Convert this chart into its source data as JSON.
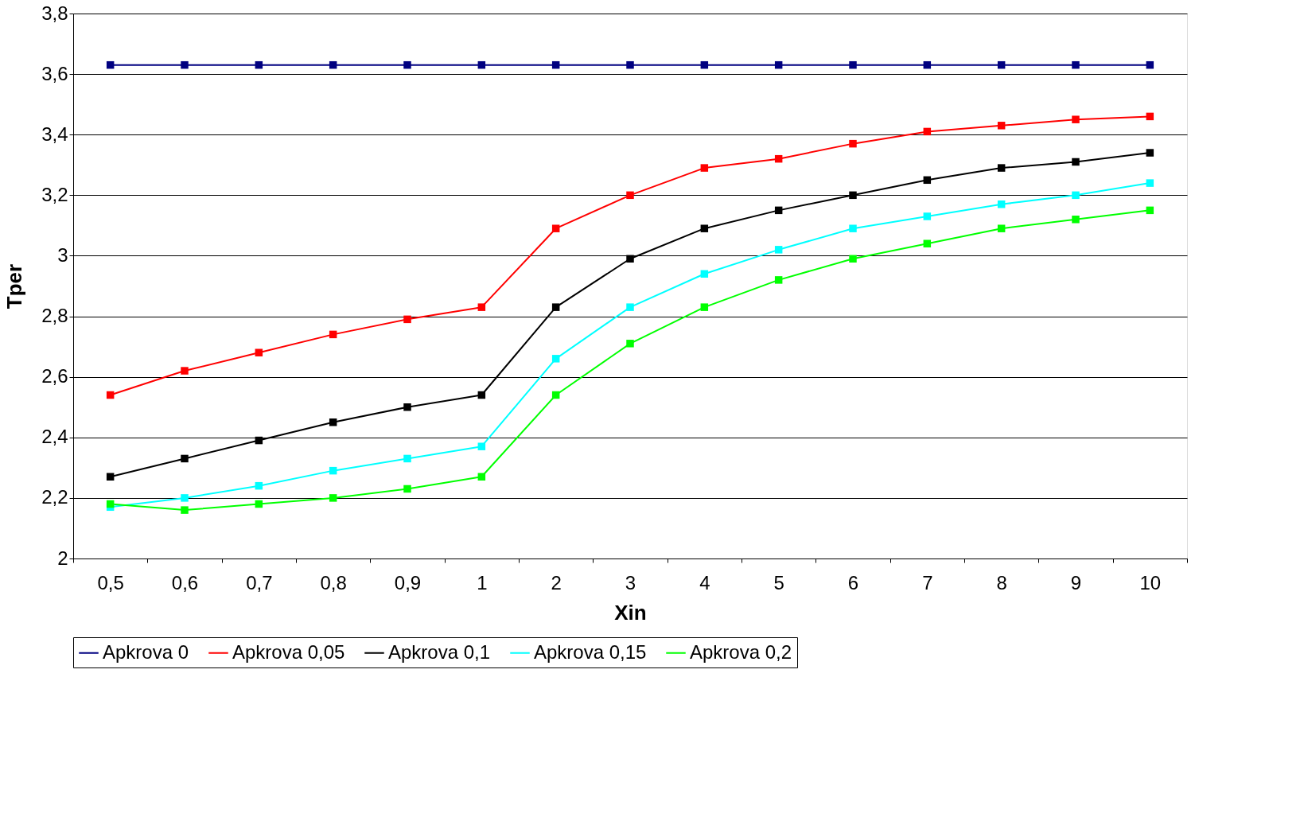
{
  "chart_data": {
    "type": "line",
    "xlabel": "Xin",
    "ylabel": "Tper",
    "categories": [
      "0,5",
      "0,6",
      "0,7",
      "0,8",
      "0,9",
      "1",
      "2",
      "3",
      "4",
      "5",
      "6",
      "7",
      "8",
      "9",
      "10"
    ],
    "series": [
      {
        "name": "Apkrova 0",
        "color": "#000080",
        "values": [
          3.63,
          3.63,
          3.63,
          3.63,
          3.63,
          3.63,
          3.63,
          3.63,
          3.63,
          3.63,
          3.63,
          3.63,
          3.63,
          3.63,
          3.63
        ]
      },
      {
        "name": "Apkrova 0,05",
        "color": "#ff0000",
        "values": [
          2.54,
          2.62,
          2.68,
          2.74,
          2.79,
          2.83,
          3.09,
          3.2,
          3.29,
          3.32,
          3.37,
          3.41,
          3.43,
          3.45,
          3.46
        ]
      },
      {
        "name": "Apkrova 0,1",
        "color": "#000000",
        "values": [
          2.27,
          2.33,
          2.39,
          2.45,
          2.5,
          2.54,
          2.83,
          2.99,
          3.09,
          3.15,
          3.2,
          3.25,
          3.29,
          3.31,
          3.34
        ]
      },
      {
        "name": "Apkrova 0,15",
        "color": "#00ffff",
        "values": [
          2.17,
          2.2,
          2.24,
          2.29,
          2.33,
          2.37,
          2.66,
          2.83,
          2.94,
          3.02,
          3.09,
          3.13,
          3.17,
          3.2,
          3.24
        ]
      },
      {
        "name": "Apkrova 0,2",
        "color": "#00ff00",
        "values": [
          2.18,
          2.16,
          2.18,
          2.2,
          2.23,
          2.27,
          2.54,
          2.71,
          2.83,
          2.92,
          2.99,
          3.04,
          3.09,
          3.12,
          3.15
        ]
      }
    ],
    "ylim": [
      2,
      3.8
    ],
    "yticks": [
      {
        "value": 2,
        "label": "2"
      },
      {
        "value": 2.2,
        "label": "2,2"
      },
      {
        "value": 2.4,
        "label": "2,4"
      },
      {
        "value": 2.6,
        "label": "2,6"
      },
      {
        "value": 2.8,
        "label": "2,8"
      },
      {
        "value": 3,
        "label": "3"
      },
      {
        "value": 3.2,
        "label": "3,2"
      },
      {
        "value": 3.4,
        "label": "3,4"
      },
      {
        "value": 3.6,
        "label": "3,6"
      },
      {
        "value": 3.8,
        "label": "3,8"
      }
    ],
    "grid": "y",
    "legend": "bottom",
    "marker": "square",
    "line_style": "solid"
  }
}
